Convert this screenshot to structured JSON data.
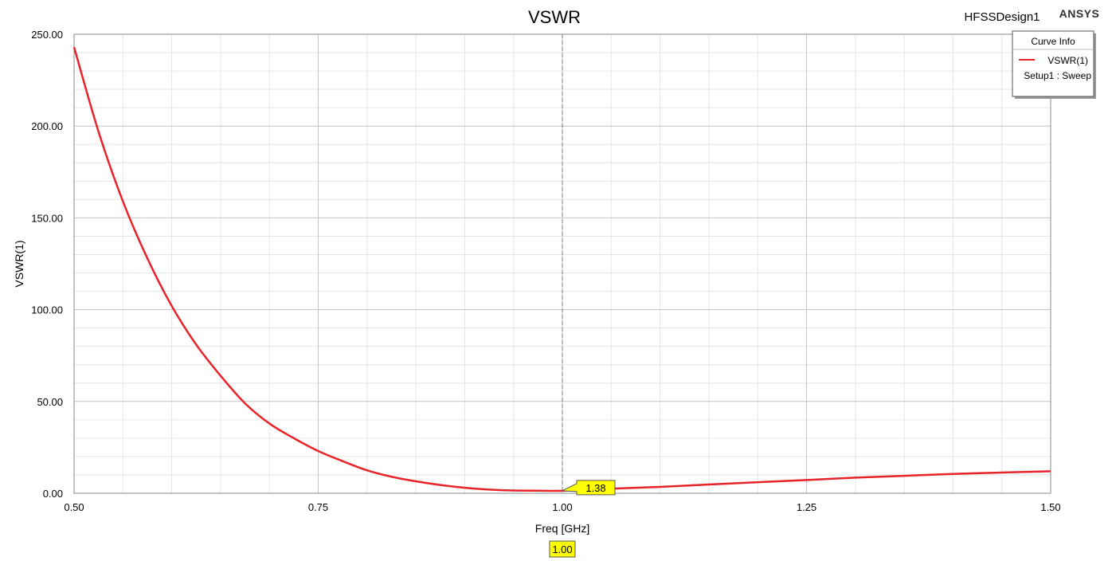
{
  "chart_data": {
    "type": "line",
    "title": "VSWR",
    "design_name": "HFSSDesign1",
    "brand": "ANSYS",
    "xlabel": "Freq [GHz]",
    "ylabel": "VSWR(1)",
    "xlim": [
      0.5,
      1.5
    ],
    "ylim": [
      0,
      250
    ],
    "x_ticks": [
      "0.50",
      "0.75",
      "1.00",
      "1.25",
      "1.50"
    ],
    "y_ticks": [
      "0.00",
      "50.00",
      "100.00",
      "150.00",
      "200.00",
      "250.00"
    ],
    "grid": true,
    "legend": {
      "title": "Curve Info",
      "placement": "top-right",
      "entries": [
        {
          "name": "VSWR(1)",
          "subtitle": "Setup1 : Sweep",
          "color": "#e8232a"
        }
      ]
    },
    "series": [
      {
        "name": "VSWR(1)",
        "color": "#e8232a",
        "x": [
          0.5,
          0.525,
          0.55,
          0.575,
          0.6,
          0.625,
          0.65,
          0.675,
          0.7,
          0.725,
          0.75,
          0.775,
          0.8,
          0.825,
          0.85,
          0.875,
          0.9,
          0.925,
          0.95,
          0.975,
          1.0,
          1.05,
          1.1,
          1.15,
          1.2,
          1.25,
          1.3,
          1.35,
          1.4,
          1.45,
          1.5
        ],
        "y": [
          243,
          197,
          159,
          128,
          102,
          81,
          64,
          49,
          38,
          30,
          23,
          17.5,
          12.5,
          9,
          6.5,
          4.5,
          3,
          2,
          1.5,
          1.4,
          1.38,
          2.5,
          3.5,
          4.8,
          6,
          7.2,
          8.5,
          9.5,
          10.5,
          11.3,
          12
        ]
      }
    ],
    "marker": {
      "x": 1.0,
      "x_label": "1.00",
      "y_label": "1.38"
    }
  }
}
